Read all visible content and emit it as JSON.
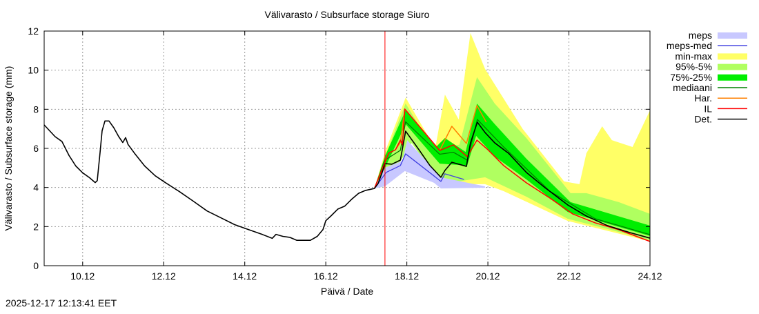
{
  "chart_data": {
    "type": "line",
    "title": "Välivarasto / Subsurface storage  Siuro",
    "xlabel": "Päivä / Date",
    "ylabel": "Välivarasto / Subsurface storage (mm)",
    "x_units": "day of December 2025",
    "xlim": [
      9.05,
      24
    ],
    "ylim": [
      0,
      12
    ],
    "grid": true,
    "legend_position": "right-outside",
    "x_ticks": [
      {
        "v": 10,
        "label": "10.12"
      },
      {
        "v": 12,
        "label": "12.12"
      },
      {
        "v": 14,
        "label": "14.12"
      },
      {
        "v": 16,
        "label": "16.12"
      },
      {
        "v": 18,
        "label": "18.12"
      },
      {
        "v": 20,
        "label": "20.12"
      },
      {
        "v": 22,
        "label": "22.12"
      },
      {
        "v": 24,
        "label": "24.12"
      }
    ],
    "y_ticks": [
      {
        "v": 0,
        "label": "0"
      },
      {
        "v": 2,
        "label": "2"
      },
      {
        "v": 4,
        "label": "4"
      },
      {
        "v": 6,
        "label": "6"
      },
      {
        "v": 8,
        "label": "8"
      },
      {
        "v": 10,
        "label": "10"
      },
      {
        "v": 12,
        "label": "12"
      }
    ],
    "forecast_start": 17.46,
    "forecast_line_color": "#ff0000",
    "bands": [
      {
        "name": "min-max",
        "color": "#ffff66",
        "upper": [
          [
            17.2,
            3.95
          ],
          [
            17.46,
            5.8
          ],
          [
            17.97,
            8.6
          ],
          [
            18.7,
            6.0
          ],
          [
            18.94,
            8.75
          ],
          [
            19.28,
            7.48
          ],
          [
            19.57,
            11.9
          ],
          [
            19.93,
            10.06
          ],
          [
            20.86,
            6.99
          ],
          [
            21.88,
            4.31
          ],
          [
            22.26,
            4.17
          ],
          [
            22.43,
            5.75
          ],
          [
            22.82,
            7.13
          ],
          [
            23.06,
            6.42
          ],
          [
            23.57,
            6.07
          ],
          [
            24,
            7.94
          ]
        ],
        "lower": [
          [
            17.2,
            3.95
          ],
          [
            17.46,
            4.06
          ],
          [
            18.12,
            6.28
          ],
          [
            18.84,
            4.17
          ],
          [
            19.93,
            4.17
          ],
          [
            20.39,
            3.81
          ],
          [
            21.97,
            2.29
          ],
          [
            24,
            1.24
          ]
        ]
      },
      {
        "name": "95%-5%",
        "color": "#b0ff60",
        "upper": [
          [
            17.2,
            3.95
          ],
          [
            17.46,
            5.6
          ],
          [
            17.97,
            8.3
          ],
          [
            18.7,
            5.8
          ],
          [
            19.3,
            6.2
          ],
          [
            19.73,
            9.64
          ],
          [
            20.17,
            8.29
          ],
          [
            20.95,
            6.53
          ],
          [
            22.04,
            3.71
          ],
          [
            22.43,
            3.71
          ],
          [
            23.23,
            3.25
          ],
          [
            24,
            2.65
          ]
        ],
        "lower": [
          [
            17.2,
            3.95
          ],
          [
            17.46,
            4.06
          ],
          [
            18.12,
            6.28
          ],
          [
            18.84,
            4.17
          ],
          [
            19.93,
            4.52
          ],
          [
            20.95,
            3.53
          ],
          [
            21.97,
            2.4
          ],
          [
            24,
            1.31
          ]
        ]
      },
      {
        "name": "75%-25%",
        "color": "#00ee00",
        "upper": [
          [
            17.2,
            3.95
          ],
          [
            17.46,
            5.6
          ],
          [
            17.97,
            7.94
          ],
          [
            18.72,
            6.07
          ],
          [
            18.94,
            6.53
          ],
          [
            19.45,
            5.82
          ],
          [
            19.73,
            8.29
          ],
          [
            20.17,
            7.24
          ],
          [
            20.95,
            5.47
          ],
          [
            22.04,
            3.25
          ],
          [
            24,
            2.05
          ]
        ],
        "lower": [
          [
            17.2,
            3.95
          ],
          [
            17.46,
            5.0
          ],
          [
            17.97,
            7.24
          ],
          [
            18.81,
            5.22
          ],
          [
            19.49,
            5.12
          ],
          [
            19.71,
            6.64
          ],
          [
            20.17,
            5.58
          ],
          [
            20.95,
            4.41
          ],
          [
            21.97,
            2.75
          ],
          [
            24,
            1.52
          ]
        ]
      },
      {
        "name": "meps",
        "color": "#c8c8ff",
        "upper": [
          [
            17.2,
            3.95
          ],
          [
            17.46,
            5.01
          ],
          [
            17.89,
            5.36
          ],
          [
            18.01,
            6.42
          ],
          [
            18.84,
            4.52
          ],
          [
            19.93,
            4.06
          ]
        ],
        "lower": [
          [
            17.2,
            3.95
          ],
          [
            17.46,
            4.06
          ],
          [
            17.95,
            4.84
          ],
          [
            18.67,
            4.24
          ],
          [
            18.84,
            3.95
          ],
          [
            19.93,
            3.99
          ]
        ]
      }
    ],
    "lines": [
      {
        "name": "mediaani",
        "color": "#008000",
        "width": 1.3,
        "points": [
          [
            17.2,
            3.95
          ],
          [
            17.46,
            5.4
          ],
          [
            17.84,
            5.9
          ],
          [
            17.97,
            7.36
          ],
          [
            18.81,
            5.7
          ],
          [
            19.15,
            5.8
          ],
          [
            19.49,
            5.4
          ],
          [
            19.74,
            7.48
          ],
          [
            20.39,
            6.07
          ],
          [
            21.53,
            3.81
          ],
          [
            22.65,
            2.4
          ],
          [
            24,
            1.59
          ]
        ]
      },
      {
        "name": "meps-med",
        "color": "#4040e0",
        "width": 1.3,
        "points": [
          [
            17.2,
            3.95
          ],
          [
            17.49,
            4.77
          ],
          [
            17.84,
            5.12
          ],
          [
            17.97,
            5.72
          ],
          [
            18.67,
            4.59
          ],
          [
            18.84,
            4.31
          ],
          [
            18.94,
            4.7
          ],
          [
            19.41,
            4.41
          ]
        ]
      },
      {
        "name": "Har.",
        "color": "#ff8000",
        "width": 1.5,
        "points": [
          [
            17.2,
            3.95
          ],
          [
            17.55,
            5.75
          ],
          [
            17.72,
            5.93
          ],
          [
            17.84,
            6.3
          ],
          [
            17.95,
            8.01
          ],
          [
            18.12,
            7.59
          ],
          [
            18.81,
            5.89
          ],
          [
            19.11,
            7.13
          ],
          [
            19.47,
            6.25
          ],
          [
            19.73,
            8.19
          ],
          [
            19.96,
            7.34
          ]
        ]
      },
      {
        "name": "IL",
        "color": "#ff0000",
        "width": 1.5,
        "points": [
          [
            17.2,
            3.95
          ],
          [
            17.55,
            5.75
          ],
          [
            17.72,
            5.93
          ],
          [
            17.84,
            6.42
          ],
          [
            17.89,
            6.18
          ],
          [
            17.95,
            8.01
          ],
          [
            18.12,
            7.59
          ],
          [
            18.81,
            5.89
          ],
          [
            19.15,
            6.18
          ],
          [
            19.49,
            5.58
          ],
          [
            19.73,
            6.42
          ],
          [
            20.0,
            5.93
          ],
          [
            20.39,
            5.12
          ],
          [
            20.95,
            4.24
          ],
          [
            21.53,
            3.46
          ],
          [
            22.09,
            2.65
          ],
          [
            22.65,
            2.19
          ],
          [
            23.23,
            1.84
          ],
          [
            24,
            1.24
          ]
        ]
      },
      {
        "name": "Det.",
        "color": "#000000",
        "width": 1.6,
        "points": [
          [
            9.05,
            7.2
          ],
          [
            9.32,
            6.6
          ],
          [
            9.49,
            6.35
          ],
          [
            9.66,
            5.65
          ],
          [
            9.83,
            5.1
          ],
          [
            10.0,
            4.75
          ],
          [
            10.17,
            4.5
          ],
          [
            10.31,
            4.25
          ],
          [
            10.36,
            4.35
          ],
          [
            10.43,
            5.8
          ],
          [
            10.48,
            6.9
          ],
          [
            10.55,
            7.4
          ],
          [
            10.65,
            7.4
          ],
          [
            10.77,
            7.05
          ],
          [
            10.89,
            6.6
          ],
          [
            10.99,
            6.3
          ],
          [
            11.06,
            6.55
          ],
          [
            11.12,
            6.2
          ],
          [
            11.28,
            5.75
          ],
          [
            11.53,
            5.1
          ],
          [
            11.79,
            4.6
          ],
          [
            12.04,
            4.25
          ],
          [
            12.38,
            3.8
          ],
          [
            12.73,
            3.3
          ],
          [
            13.07,
            2.8
          ],
          [
            13.41,
            2.45
          ],
          [
            13.75,
            2.1
          ],
          [
            14.09,
            1.85
          ],
          [
            14.43,
            1.6
          ],
          [
            14.68,
            1.4
          ],
          [
            14.77,
            1.6
          ],
          [
            14.94,
            1.5
          ],
          [
            15.11,
            1.45
          ],
          [
            15.28,
            1.3
          ],
          [
            15.62,
            1.3
          ],
          [
            15.79,
            1.5
          ],
          [
            15.93,
            1.85
          ],
          [
            16.0,
            2.3
          ],
          [
            16.13,
            2.55
          ],
          [
            16.3,
            2.9
          ],
          [
            16.47,
            3.05
          ],
          [
            16.64,
            3.4
          ],
          [
            16.81,
            3.7
          ],
          [
            16.98,
            3.85
          ],
          [
            17.2,
            3.95
          ],
          [
            17.29,
            4.2
          ],
          [
            17.38,
            4.7
          ],
          [
            17.46,
            5.22
          ],
          [
            17.63,
            5.19
          ],
          [
            17.84,
            5.4
          ],
          [
            17.97,
            6.88
          ],
          [
            18.3,
            5.93
          ],
          [
            18.57,
            5.12
          ],
          [
            18.84,
            4.52
          ],
          [
            18.94,
            4.87
          ],
          [
            19.11,
            5.29
          ],
          [
            19.47,
            5.08
          ],
          [
            19.57,
            6.28
          ],
          [
            19.74,
            7.34
          ],
          [
            19.93,
            6.81
          ],
          [
            20.17,
            6.28
          ],
          [
            20.51,
            5.75
          ],
          [
            20.95,
            4.77
          ],
          [
            21.41,
            3.99
          ],
          [
            21.97,
            3.11
          ],
          [
            22.43,
            2.54
          ],
          [
            22.95,
            2.05
          ],
          [
            23.51,
            1.69
          ],
          [
            24,
            1.41
          ]
        ]
      }
    ],
    "legend": [
      {
        "label": "meps",
        "kind": "band",
        "color": "#c8c8ff"
      },
      {
        "label": "meps-med",
        "kind": "line",
        "color": "#4040e0"
      },
      {
        "label": "min-max",
        "kind": "band",
        "color": "#ffff66"
      },
      {
        "label": "95%-5%",
        "kind": "band",
        "color": "#b0ff60"
      },
      {
        "label": "75%-25%",
        "kind": "band",
        "color": "#00ee00"
      },
      {
        "label": "mediaani",
        "kind": "line",
        "color": "#008000"
      },
      {
        "label": "Har.",
        "kind": "line",
        "color": "#ff8000"
      },
      {
        "label": "IL",
        "kind": "line",
        "color": "#ff0000"
      },
      {
        "label": "Det.",
        "kind": "line",
        "color": "#000000"
      }
    ]
  },
  "timestamp": "2025-12-17 12:13:41 EET"
}
